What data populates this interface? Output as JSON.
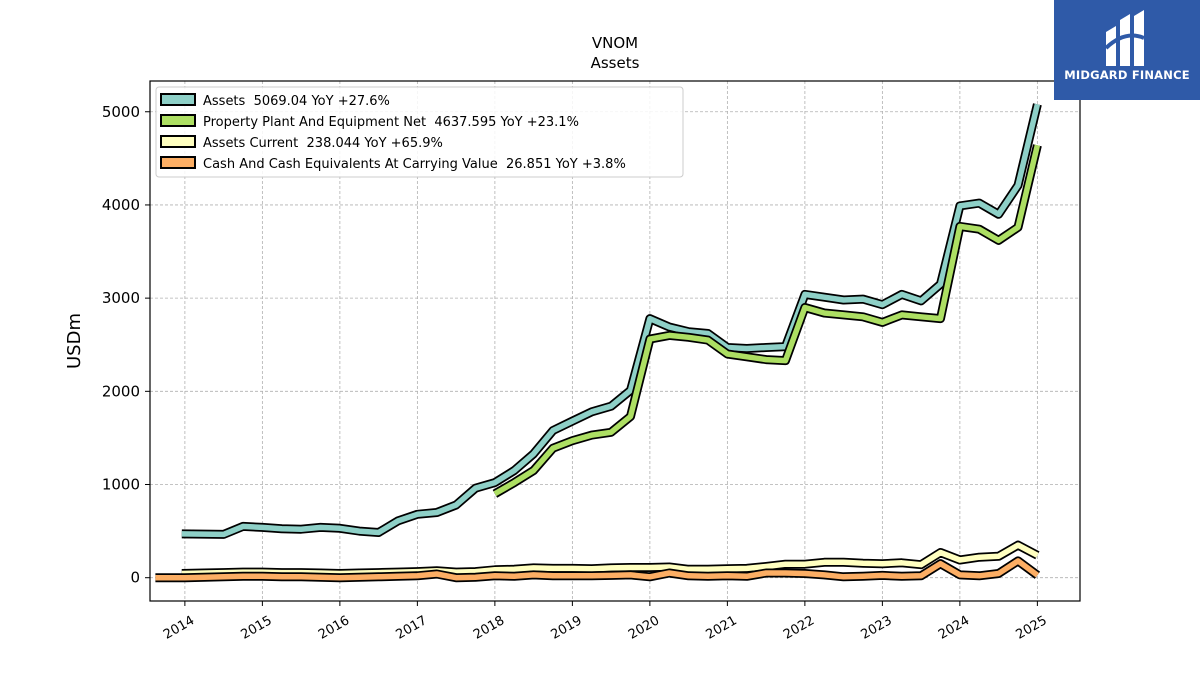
{
  "brand": {
    "name": "MIDGARD FINANCE"
  },
  "chart_data": {
    "type": "line",
    "title": "VNOM",
    "subtitle": "Assets",
    "xlabel": "",
    "ylabel": "USDm",
    "xlim": [
      2013.55,
      2025.55
    ],
    "ylim": [
      -250,
      5330
    ],
    "x_ticks": [
      "2014",
      "2015",
      "2016",
      "2017",
      "2018",
      "2019",
      "2020",
      "2021",
      "2022",
      "2023",
      "2024",
      "2025"
    ],
    "y_ticks": [
      0,
      1000,
      2000,
      3000,
      4000,
      5000
    ],
    "grid": true,
    "legend_position": "top-left",
    "series": [
      {
        "name": "Assets",
        "legend": "Assets  5069.04 YoY +27.6%",
        "color": "#8ed0c7",
        "x": [
          2013.96,
          2014.5,
          2014.75,
          2015.0,
          2015.25,
          2015.5,
          2015.75,
          2016.0,
          2016.25,
          2016.5,
          2016.75,
          2017.0,
          2017.25,
          2017.5,
          2017.75,
          2018.0,
          2018.25,
          2018.5,
          2018.75,
          2019.0,
          2019.25,
          2019.5,
          2019.75,
          2020.0,
          2020.25,
          2020.5,
          2020.75,
          2021.0,
          2021.25,
          2021.5,
          2021.75,
          2022.0,
          2022.25,
          2022.5,
          2022.75,
          2023.0,
          2023.25,
          2023.5,
          2023.75,
          2024.0,
          2024.25,
          2024.5,
          2024.75,
          2025.0
        ],
        "y": [
          470,
          465,
          550,
          540,
          525,
          520,
          540,
          530,
          500,
          485,
          610,
          680,
          700,
          780,
          960,
          1020,
          1150,
          1330,
          1580,
          1680,
          1780,
          1840,
          2010,
          2780,
          2690,
          2640,
          2620,
          2470,
          2460,
          2470,
          2480,
          3040,
          3010,
          2980,
          2990,
          2930,
          3040,
          2970,
          3150,
          3990,
          4020,
          3900,
          4210,
          5080
        ]
      },
      {
        "name": "Property Plant And Equipment Net",
        "legend": "Property Plant And Equipment Net  4637.595 YoY +23.1%",
        "color": "#addf63",
        "x": [
          2018.0,
          2018.25,
          2018.5,
          2018.75,
          2019.0,
          2019.25,
          2019.5,
          2019.75,
          2020.0,
          2020.25,
          2020.5,
          2020.75,
          2021.0,
          2021.25,
          2021.5,
          2021.75,
          2022.0,
          2022.25,
          2022.5,
          2022.75,
          2023.0,
          2023.25,
          2023.5,
          2023.75,
          2024.0,
          2024.25,
          2024.5,
          2024.75,
          2025.0
        ],
        "y": [
          900,
          1020,
          1150,
          1390,
          1470,
          1530,
          1560,
          1730,
          2560,
          2600,
          2580,
          2550,
          2400,
          2370,
          2340,
          2330,
          2900,
          2840,
          2820,
          2800,
          2740,
          2820,
          2800,
          2780,
          3770,
          3740,
          3620,
          3760,
          4640
        ]
      },
      {
        "name": "Assets Current",
        "legend": "Assets Current  238.044 YoY +65.9%",
        "color": "#ffffc0",
        "x": [
          2013.96,
          2014.25,
          2014.5,
          2014.75,
          2015.0,
          2015.25,
          2015.5,
          2015.75,
          2016.0,
          2016.25,
          2016.5,
          2016.75,
          2017.0,
          2017.25,
          2017.5,
          2017.75,
          2018.0,
          2018.25,
          2018.5,
          2018.75,
          2019.0,
          2019.25,
          2019.5,
          2019.75,
          2020.0,
          2020.25,
          2020.5,
          2020.75,
          2021.0,
          2021.25,
          2021.5,
          2021.75,
          2022.0,
          2022.25,
          2022.5,
          2022.75,
          2023.0,
          2023.25,
          2023.5,
          2023.75,
          2024.0,
          2024.25,
          2024.5,
          2024.75,
          2025.0
        ],
        "y": [
          45,
          50,
          55,
          60,
          60,
          55,
          55,
          50,
          45,
          50,
          55,
          60,
          65,
          75,
          60,
          65,
          85,
          90,
          105,
          100,
          100,
          95,
          105,
          110,
          110,
          115,
          90,
          90,
          95,
          100,
          120,
          145,
          145,
          165,
          165,
          155,
          150,
          160,
          140,
          270,
          190,
          220,
          230,
          350,
          240
        ]
      },
      {
        "name": "Cash And Cash Equivalents At Carrying Value",
        "legend": "Cash And Cash Equivalents At Carrying Value  26.851 YoY +3.8%",
        "color": "#fcae64",
        "x": [
          2013.62,
          2014.0,
          2014.25,
          2014.5,
          2014.75,
          2015.0,
          2015.25,
          2015.5,
          2015.75,
          2016.0,
          2016.25,
          2016.5,
          2016.75,
          2017.0,
          2017.25,
          2017.5,
          2017.75,
          2018.0,
          2018.25,
          2018.5,
          2018.75,
          2019.0,
          2019.25,
          2019.5,
          2019.75,
          2020.0,
          2020.25,
          2020.5,
          2020.75,
          2021.0,
          2021.25,
          2021.5,
          2021.75,
          2022.0,
          2022.25,
          2022.5,
          2022.75,
          2023.0,
          2023.25,
          2023.5,
          2023.75,
          2024.0,
          2024.25,
          2024.5,
          2024.75,
          2025.0
        ],
        "y": [
          0,
          0,
          5,
          10,
          15,
          15,
          10,
          10,
          5,
          0,
          5,
          10,
          15,
          20,
          40,
          0,
          5,
          20,
          15,
          30,
          20,
          20,
          20,
          25,
          30,
          10,
          50,
          20,
          15,
          20,
          15,
          50,
          50,
          45,
          30,
          10,
          15,
          25,
          15,
          20,
          150,
          30,
          20,
          45,
          180,
          27
        ]
      }
    ]
  }
}
